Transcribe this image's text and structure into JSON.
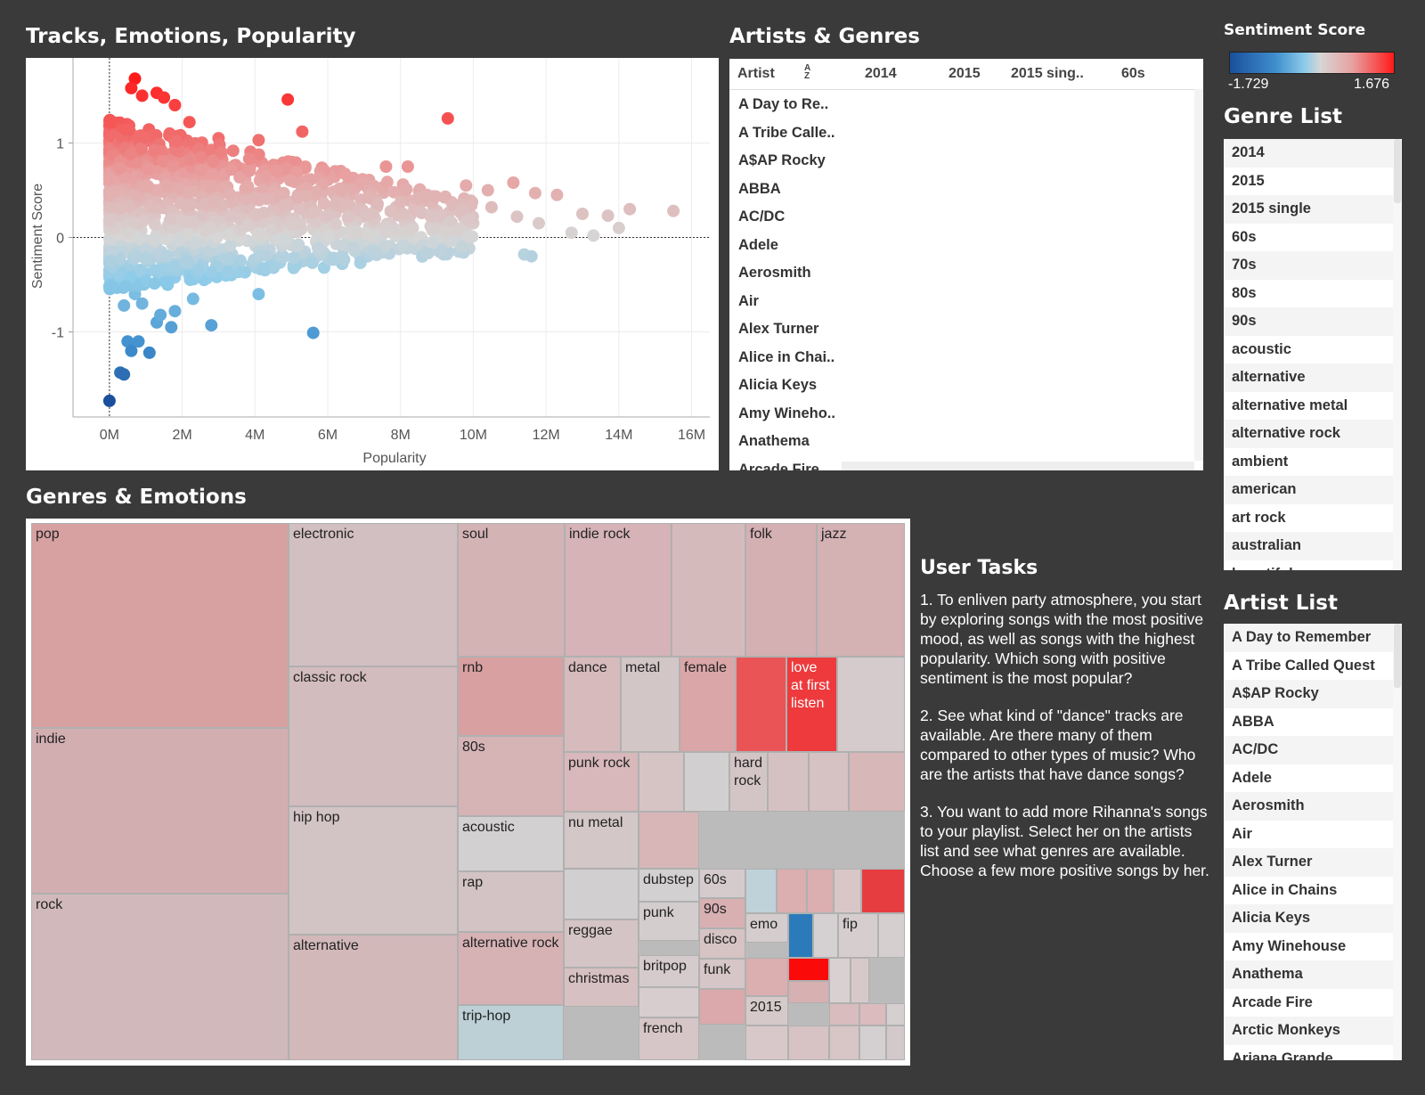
{
  "scatter": {
    "title": "Tracks, Emotions, Popularity",
    "xlabel": "Popularity",
    "ylabel": "Sentiment Score",
    "x_ticks": [
      "0M",
      "2M",
      "4M",
      "6M",
      "8M",
      "10M",
      "12M",
      "14M",
      "16M"
    ],
    "y_ticks": [
      "1",
      "0",
      "-1"
    ]
  },
  "chart_data": {
    "type": "scatter",
    "xlabel": "Popularity",
    "ylabel": "Sentiment Score",
    "xlim": [
      -1000000,
      16500000
    ],
    "ylim": [
      -1.9,
      1.9
    ],
    "x_ticks": [
      0,
      2000000,
      4000000,
      6000000,
      8000000,
      10000000,
      12000000,
      14000000,
      16000000
    ],
    "y_ticks": [
      1,
      0,
      -1
    ],
    "color_scale": {
      "min": -1.729,
      "max": 1.676,
      "low_color": "#1a4f9c",
      "mid_color": "#d6d6d6",
      "high_color": "#ff1a1a"
    },
    "points": [
      [
        0,
        -1.729
      ],
      [
        300000,
        -1.43
      ],
      [
        400000,
        -1.45
      ],
      [
        500000,
        -1.1
      ],
      [
        600000,
        -1.2
      ],
      [
        800000,
        -1.1
      ],
      [
        1100000,
        -1.22
      ],
      [
        1300000,
        -0.9
      ],
      [
        1700000,
        -0.95
      ],
      [
        2800000,
        -0.93
      ],
      [
        5600000,
        -1.01
      ],
      [
        400000,
        -0.72
      ],
      [
        700000,
        -0.6
      ],
      [
        900000,
        -0.7
      ],
      [
        1400000,
        -0.82
      ],
      [
        1800000,
        -0.78
      ],
      [
        2300000,
        -0.65
      ],
      [
        4100000,
        -0.6
      ],
      [
        1600000,
        -0.5
      ],
      [
        2600000,
        -0.45
      ],
      [
        700000,
        1.68
      ],
      [
        600000,
        1.58
      ],
      [
        900000,
        1.5
      ],
      [
        1300000,
        1.53
      ],
      [
        1500000,
        1.48
      ],
      [
        1800000,
        1.4
      ],
      [
        2200000,
        1.22
      ],
      [
        4900000,
        1.46
      ],
      [
        9300000,
        1.26
      ],
      [
        3000000,
        1.05
      ],
      [
        4100000,
        1.03
      ],
      [
        5300000,
        1.12
      ],
      [
        7600000,
        0.75
      ],
      [
        8200000,
        0.75
      ],
      [
        6200000,
        0.7
      ],
      [
        6700000,
        0.63
      ],
      [
        7000000,
        0.58
      ],
      [
        9800000,
        0.55
      ],
      [
        10400000,
        0.5
      ],
      [
        11100000,
        0.58
      ],
      [
        11700000,
        0.47
      ],
      [
        12300000,
        0.45
      ],
      [
        13000000,
        0.25
      ],
      [
        13700000,
        0.23
      ],
      [
        14300000,
        0.3
      ],
      [
        15500000,
        0.28
      ],
      [
        12700000,
        0.05
      ],
      [
        14000000,
        0.1
      ],
      [
        13300000,
        0.02
      ],
      [
        8500000,
        0.35
      ],
      [
        9000000,
        0.28
      ],
      [
        9500000,
        0.3
      ],
      [
        10000000,
        0.15
      ],
      [
        10500000,
        0.32
      ],
      [
        11200000,
        0.22
      ],
      [
        11800000,
        0.15
      ],
      [
        9200000,
        -0.05
      ],
      [
        8400000,
        -0.12
      ],
      [
        9600000,
        -0.15
      ],
      [
        11400000,
        -0.18
      ],
      [
        11600000,
        -0.2
      ],
      [
        7100000,
        -0.2
      ],
      [
        6400000,
        -0.28
      ],
      [
        5900000,
        -0.32
      ],
      [
        2100000,
        0.62
      ],
      [
        6800000,
        0.05
      ],
      [
        7300000,
        0.2
      ],
      [
        7800000,
        0.1
      ]
    ]
  },
  "artists_genres": {
    "title": "Artists & Genres",
    "columns": [
      "Artist",
      "2014",
      "2015",
      "2015 sing..",
      "60s"
    ],
    "rows": [
      "A Day to Re..",
      "A Tribe Calle..",
      "A$AP Rocky",
      "ABBA",
      "AC/DC",
      "Adele",
      "Aerosmith",
      "Air",
      "Alex Turner",
      "Alice in Chai..",
      "Alicia Keys",
      "Amy Wineho..",
      "Anathema",
      "Arcade Fire"
    ]
  },
  "treemap": {
    "title": "Genres & Emotions",
    "cells": [
      {
        "label": "pop",
        "color": "#d7a1a2"
      },
      {
        "label": "indie",
        "color": "#d3aeb0"
      },
      {
        "label": "rock",
        "color": "#d1b9bb"
      },
      {
        "label": "electronic",
        "color": "#d2bfc1"
      },
      {
        "label": "classic rock",
        "color": "#d3bcbe"
      },
      {
        "label": "hip hop",
        "color": "#d2c3c5"
      },
      {
        "label": "alternative",
        "color": "#d3b8ba"
      },
      {
        "label": "soul",
        "color": "#d4b3b5"
      },
      {
        "label": "indie rock",
        "color": "#d5b3b6"
      },
      {
        "label": "",
        "color": "#d5babc"
      },
      {
        "label": "folk",
        "color": "#d4b0b2"
      },
      {
        "label": "jazz",
        "color": "#d4b1b3"
      },
      {
        "label": "rnb",
        "color": "#d9a0a1"
      },
      {
        "label": "80s",
        "color": "#d6b3b5"
      },
      {
        "label": "acoustic",
        "color": "#d3d0d1"
      },
      {
        "label": "rap",
        "color": "#d3c3c4"
      },
      {
        "label": "alternative rock",
        "color": "#d6b2b4"
      },
      {
        "label": "trip-hop",
        "color": "#bcd0d6"
      },
      {
        "label": "dance",
        "color": "#d6babc"
      },
      {
        "label": "metal",
        "color": "#d3c6c7"
      },
      {
        "label": "female",
        "color": "#dba6a8"
      },
      {
        "label": "",
        "color": "#ea5456"
      },
      {
        "label": "love at first listen",
        "color": "#ee3a3d",
        "text_color": "#ffffff"
      },
      {
        "label": "",
        "color": "#d5cbcc"
      },
      {
        "label": "punk rock",
        "color": "#d8b8ba"
      },
      {
        "label": "",
        "color": "#d6c4c5"
      },
      {
        "label": "",
        "color": "#d2cfd0"
      },
      {
        "label": "hard rock",
        "color": "#d3c5c6"
      },
      {
        "label": "",
        "color": "#d6c1c2"
      },
      {
        "label": "",
        "color": "#d6c1c3"
      },
      {
        "label": "",
        "color": "#d8b7b9"
      },
      {
        "label": "nu metal",
        "color": "#d3c7c8"
      },
      {
        "label": "dubstep",
        "color": "#d3d0d1"
      },
      {
        "label": "reggae",
        "color": "#d5c4c5"
      },
      {
        "label": "christmas",
        "color": "#d7c0c2"
      },
      {
        "label": "",
        "color": "#d2cfd0"
      },
      {
        "label": "60s",
        "color": "#d5cbcd"
      },
      {
        "label": "90s",
        "color": "#d8b0b2"
      },
      {
        "label": "disco",
        "color": "#d6c3c4"
      },
      {
        "label": "funk",
        "color": "#d6c6c7"
      },
      {
        "label": "",
        "color": "#d8b6b8"
      },
      {
        "label": "",
        "color": "#bfd2d9"
      },
      {
        "label": "",
        "color": "#dbaeb0"
      },
      {
        "label": "",
        "color": "#dbaeb0"
      },
      {
        "label": "",
        "color": "#d9c7c8"
      },
      {
        "label": "",
        "color": "#e63e40"
      },
      {
        "label": "emo",
        "color": "#d4cccd"
      },
      {
        "label": "",
        "color": "#2b7bba"
      },
      {
        "label": "",
        "color": "#d5d1d2"
      },
      {
        "label": "fip",
        "color": "#d5cdce"
      },
      {
        "label": "",
        "color": "#d6cfd0"
      },
      {
        "label": "punk",
        "color": "#d4cdce"
      },
      {
        "label": "britpop",
        "color": "#d5cbcc"
      },
      {
        "label": "",
        "color": "#d7cdce"
      },
      {
        "label": "french",
        "color": "#d7c6c7"
      },
      {
        "label": "",
        "color": "#dba9ab"
      },
      {
        "label": "",
        "color": "#fb0a0a"
      },
      {
        "label": "2015",
        "color": "#d6c9ca"
      },
      {
        "label": "",
        "color": "#dbaeb0"
      },
      {
        "label": "",
        "color": "#d9c8c9"
      },
      {
        "label": "",
        "color": "#d7b0b2"
      },
      {
        "label": "",
        "color": "#d8d0d1"
      },
      {
        "label": "",
        "color": "#d7c9ca"
      },
      {
        "label": "",
        "color": "#d8bcbe"
      },
      {
        "label": "",
        "color": "#dbbbbd"
      },
      {
        "label": "",
        "color": "#d5cfd0"
      },
      {
        "label": "",
        "color": "#d7c3c4"
      },
      {
        "label": "",
        "color": "#d8c5c6"
      },
      {
        "label": "",
        "color": "#d4d0d1"
      },
      {
        "label": "",
        "color": "#d3c9ca"
      }
    ]
  },
  "tasks": {
    "title": "User Tasks",
    "items": [
      "1. To enliven party atmosphere, you start by exploring songs with the most positive mood, as well as songs with the highest popularity. Which song with positive sentiment is the most popular?",
      "2. See what kind of \"dance\" tracks are available. Are there many of them compared to other types of music? Who are the artists that have dance songs?",
      "3. You want to add more Rihanna's songs to your playlist. Select her on the artists list and see what genres are available. Choose a few more positive songs by her."
    ]
  },
  "legend": {
    "title": "Sentiment Score",
    "min_label": "-1.729",
    "max_label": "1.676"
  },
  "genre_list": {
    "title": "Genre List",
    "items": [
      "2014",
      "2015",
      "2015 single",
      "60s",
      "70s",
      "80s",
      "90s",
      "acoustic",
      "alternative",
      "alternative metal",
      "alternative rock",
      "ambient",
      "american",
      "art rock",
      "australian",
      "beautiful"
    ]
  },
  "artist_list": {
    "title": "Artist List",
    "items": [
      "A Day to Remember",
      "A Tribe Called Quest",
      "A$AP Rocky",
      "ABBA",
      "AC/DC",
      "Adele",
      "Aerosmith",
      "Air",
      "Alex Turner",
      "Alice in Chains",
      "Alicia Keys",
      "Amy Winehouse",
      "Anathema",
      "Arcade Fire",
      "Arctic Monkeys",
      "Ariana Grande"
    ]
  }
}
